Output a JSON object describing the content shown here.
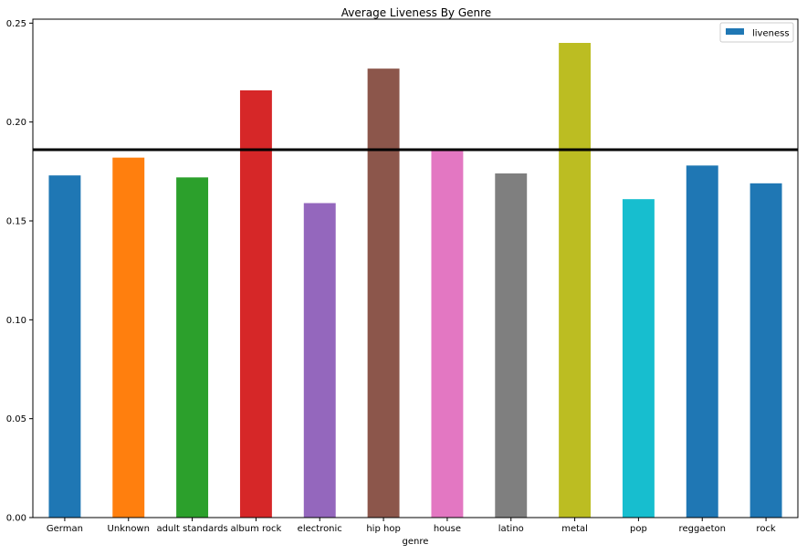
{
  "chart_data": {
    "type": "bar",
    "title": "Average Liveness By Genre",
    "xlabel": "genre",
    "ylabel": "",
    "categories": [
      "German",
      "Unknown",
      "adult standards",
      "album rock",
      "electronic",
      "hip hop",
      "house",
      "latino",
      "metal",
      "pop",
      "reggaeton",
      "rock"
    ],
    "series": [
      {
        "name": "liveness",
        "values": [
          0.173,
          0.182,
          0.172,
          0.216,
          0.159,
          0.227,
          0.186,
          0.174,
          0.24,
          0.161,
          0.178,
          0.169
        ]
      }
    ],
    "bar_colors": [
      "#1f77b4",
      "#ff7f0e",
      "#2ca02c",
      "#d62728",
      "#9467bd",
      "#8c564b",
      "#e377c2",
      "#7f7f7f",
      "#bcbd22",
      "#17becf",
      "#1f77b4",
      "#1f77b4"
    ],
    "legend_color": "#1f77b4",
    "reference_line": {
      "value": 0.186,
      "color": "#000000"
    },
    "ylim": [
      0,
      0.252
    ],
    "yticks": [
      0.0,
      0.05,
      0.1,
      0.15,
      0.2,
      0.25
    ],
    "ytick_labels": [
      "0.00",
      "0.05",
      "0.10",
      "0.15",
      "0.20",
      "0.25"
    ],
    "legend_position": "top-right",
    "grid": false
  }
}
